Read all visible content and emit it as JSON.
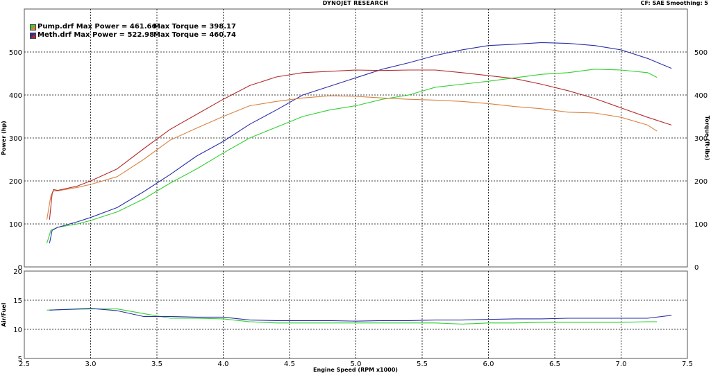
{
  "header": {
    "title": "DYNOJET RESEARCH",
    "cf_info": "CF: SAE  Smoothing: 5"
  },
  "legend": [
    {
      "name": "Pump.drf",
      "power_text": "Pump.drf Max Power = 461.66",
      "torque_text": "Max Torque = 398.17",
      "colors": [
        "#2fd12f",
        "#d9823f"
      ]
    },
    {
      "name": "Meth.drf",
      "power_text": "Meth.drf Max Power = 522.98",
      "torque_text": "Max Torque = 460.74",
      "colors": [
        "#2a2fa8",
        "#b32c2c"
      ]
    }
  ],
  "chart_data": [
    {
      "type": "line",
      "title": "DYNOJET RESEARCH",
      "xlabel": "Engine Speed (RPM x1000)",
      "ylabel": "Power (hp)",
      "y2label": "Torque (ft-lbs)",
      "xlim": [
        2.5,
        7.5
      ],
      "ylim": [
        0,
        600
      ],
      "y2lim": [
        0,
        600
      ],
      "x_ticks": [
        "2.5",
        "3.0",
        "3.5",
        "4.0",
        "4.5",
        "5.0",
        "5.5",
        "6.0",
        "6.5",
        "7.0",
        "7.5"
      ],
      "y_ticks": [
        "0",
        "100",
        "200",
        "300",
        "400",
        "500"
      ],
      "grid": true,
      "legend_position": "top-left",
      "series": [
        {
          "name": "Pump.drf Power",
          "color": "#2fd12f",
          "x": [
            2.67,
            2.7,
            2.75,
            2.9,
            3.0,
            3.2,
            3.4,
            3.6,
            3.8,
            4.0,
            4.2,
            4.4,
            4.6,
            4.8,
            5.0,
            5.2,
            5.4,
            5.6,
            5.8,
            6.0,
            6.2,
            6.4,
            6.6,
            6.8,
            7.0,
            7.2,
            7.27
          ],
          "y": [
            55,
            85,
            92,
            100,
            108,
            128,
            158,
            195,
            228,
            265,
            300,
            325,
            350,
            365,
            375,
            390,
            400,
            418,
            425,
            432,
            440,
            448,
            452,
            460,
            458,
            452,
            441
          ]
        },
        {
          "name": "Meth.drf Power",
          "color": "#2a2fa8",
          "x": [
            2.69,
            2.71,
            2.75,
            2.9,
            3.0,
            3.2,
            3.4,
            3.6,
            3.8,
            4.0,
            4.2,
            4.4,
            4.6,
            4.8,
            5.0,
            5.2,
            5.4,
            5.6,
            5.8,
            6.0,
            6.2,
            6.4,
            6.6,
            6.8,
            7.0,
            7.2,
            7.38
          ],
          "y": [
            55,
            85,
            92,
            105,
            115,
            138,
            175,
            215,
            258,
            292,
            332,
            365,
            400,
            420,
            440,
            460,
            475,
            492,
            505,
            515,
            518,
            522,
            520,
            515,
            505,
            485,
            462
          ]
        },
        {
          "name": "Pump.drf Torque",
          "color": "#d9823f",
          "x": [
            2.67,
            2.7,
            2.72,
            2.75,
            2.9,
            3.0,
            3.2,
            3.4,
            3.6,
            3.8,
            4.0,
            4.2,
            4.4,
            4.6,
            4.8,
            5.0,
            5.2,
            5.4,
            5.6,
            5.8,
            6.0,
            6.2,
            6.4,
            6.6,
            6.8,
            7.0,
            7.2,
            7.27
          ],
          "y": [
            110,
            165,
            177,
            177,
            185,
            192,
            210,
            250,
            295,
            323,
            350,
            375,
            385,
            393,
            398,
            397,
            393,
            390,
            388,
            385,
            380,
            373,
            368,
            360,
            358,
            348,
            330,
            316
          ]
        },
        {
          "name": "Meth.drf Torque",
          "color": "#b32c2c",
          "x": [
            2.69,
            2.71,
            2.72,
            2.75,
            2.9,
            3.0,
            3.2,
            3.4,
            3.6,
            3.8,
            4.0,
            4.2,
            4.4,
            4.6,
            4.8,
            5.0,
            5.2,
            5.4,
            5.6,
            5.8,
            6.0,
            6.2,
            6.4,
            6.6,
            6.8,
            7.0,
            7.2,
            7.38
          ],
          "y": [
            110,
            170,
            180,
            178,
            188,
            200,
            228,
            275,
            320,
            355,
            390,
            422,
            442,
            452,
            455,
            458,
            457,
            458,
            458,
            452,
            445,
            438,
            425,
            410,
            392,
            370,
            348,
            330
          ]
        }
      ]
    },
    {
      "type": "line",
      "xlabel": "Engine Speed (RPM x1000)",
      "ylabel": "Air/Fuel",
      "xlim": [
        2.5,
        7.5
      ],
      "ylim": [
        5,
        20
      ],
      "x_ticks": [
        "2.5",
        "3.0",
        "3.5",
        "4.0",
        "4.5",
        "5.0",
        "5.5",
        "6.0",
        "6.5",
        "7.0",
        "7.5"
      ],
      "y_ticks": [
        "5",
        "10",
        "15",
        "20"
      ],
      "grid": true,
      "series": [
        {
          "name": "Pump.drf Air/Fuel",
          "color": "#2fd12f",
          "x": [
            2.67,
            2.8,
            3.0,
            3.2,
            3.4,
            3.6,
            3.8,
            4.0,
            4.2,
            4.4,
            4.6,
            4.8,
            5.0,
            5.2,
            5.4,
            5.6,
            5.8,
            6.0,
            6.2,
            6.4,
            6.6,
            6.8,
            7.0,
            7.2,
            7.27
          ],
          "y": [
            13.3,
            13.4,
            13.5,
            13.5,
            12.7,
            11.9,
            11.9,
            11.8,
            11.3,
            11.1,
            11.1,
            11.1,
            11.1,
            11.1,
            11.1,
            11.1,
            10.9,
            11.1,
            11.1,
            11.2,
            11.2,
            11.2,
            11.2,
            11.3,
            11.3
          ]
        },
        {
          "name": "Meth.drf Air/Fuel",
          "color": "#2a2fa8",
          "x": [
            2.69,
            2.8,
            3.0,
            3.2,
            3.4,
            3.6,
            3.8,
            4.0,
            4.2,
            4.4,
            4.6,
            4.8,
            5.0,
            5.2,
            5.4,
            5.6,
            5.8,
            6.0,
            6.2,
            6.4,
            6.6,
            6.8,
            7.0,
            7.2,
            7.38
          ],
          "y": [
            13.3,
            13.4,
            13.6,
            13.2,
            12.2,
            12.2,
            12.1,
            12.1,
            11.6,
            11.5,
            11.5,
            11.5,
            11.4,
            11.5,
            11.5,
            11.6,
            11.6,
            11.7,
            11.8,
            11.8,
            11.9,
            11.9,
            11.9,
            11.9,
            12.4
          ]
        }
      ]
    }
  ]
}
